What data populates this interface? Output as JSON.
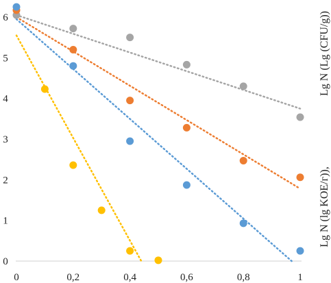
{
  "chart_data": {
    "type": "scatter",
    "xlim": [
      0,
      1
    ],
    "ylim": [
      0,
      6
    ],
    "x_ticks": [
      "0",
      "0,2",
      "0,4",
      "0,6",
      "0,8",
      "1"
    ],
    "y_ticks": [
      "0",
      "1",
      "2",
      "3",
      "4",
      "5",
      "6"
    ],
    "ylabel_top": "Lg N (Lg (CFU/g))",
    "ylabel_bottom": "Lg N (lg KOE/г)),",
    "grid": false,
    "legend": "none",
    "series": [
      {
        "color": "#a5a5a5",
        "points": [
          [
            0,
            6.05
          ],
          [
            0.2,
            5.72
          ],
          [
            0.4,
            5.5
          ],
          [
            0.6,
            4.83
          ],
          [
            0.8,
            4.3
          ],
          [
            1.0,
            3.54
          ]
        ],
        "trend": [
          [
            0,
            6.05
          ],
          [
            1.0,
            3.75
          ]
        ]
      },
      {
        "color": "#ed7d31",
        "points": [
          [
            0,
            6.17
          ],
          [
            0.2,
            5.2
          ],
          [
            0.4,
            3.95
          ],
          [
            0.6,
            3.28
          ],
          [
            0.8,
            2.47
          ],
          [
            1.0,
            2.06
          ]
        ],
        "trend": [
          [
            0,
            6.0
          ],
          [
            1.0,
            1.78
          ]
        ]
      },
      {
        "color": "#5b9bd5",
        "points": [
          [
            0,
            6.25
          ],
          [
            0.2,
            4.8
          ],
          [
            0.4,
            2.95
          ],
          [
            0.6,
            1.87
          ],
          [
            0.8,
            0.93
          ],
          [
            1.0,
            0.25
          ]
        ],
        "trend": [
          [
            0,
            5.95
          ],
          [
            0.97,
            0
          ]
        ]
      },
      {
        "color": "#ffc000",
        "points": [
          [
            0.1,
            4.23
          ],
          [
            0.2,
            2.36
          ],
          [
            0.3,
            1.25
          ],
          [
            0.4,
            0.25
          ],
          [
            0.5,
            0.02
          ]
        ],
        "trend": [
          [
            0,
            5.55
          ],
          [
            0.44,
            0
          ]
        ]
      }
    ]
  }
}
